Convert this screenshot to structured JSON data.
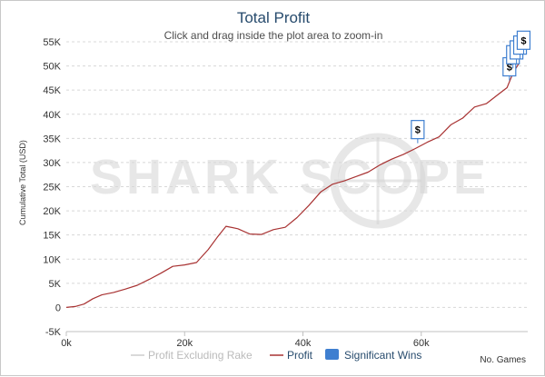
{
  "chart_data": {
    "type": "line",
    "title": "Total Profit",
    "subtitle": "Click and drag inside the plot area to zoom-in",
    "xlabel": "No. Games",
    "ylabel": "Cumulative Total (USD)",
    "xlim": [
      0,
      78000
    ],
    "ylim": [
      -5000,
      55000
    ],
    "x_ticks": [
      0,
      20000,
      40000,
      60000
    ],
    "x_tick_labels": [
      "0k",
      "20k",
      "40k",
      "60k"
    ],
    "y_ticks": [
      -5000,
      0,
      5000,
      10000,
      15000,
      20000,
      25000,
      30000,
      35000,
      40000,
      45000,
      50000,
      55000
    ],
    "y_tick_labels": [
      "-5K",
      "0",
      "5K",
      "10K",
      "15K",
      "20K",
      "25K",
      "30K",
      "35K",
      "40K",
      "45K",
      "50K",
      "55K"
    ],
    "grid": true,
    "series": [
      {
        "name": "Profit",
        "color": "#a83232",
        "x": [
          0,
          1500,
          3000,
          4500,
          6000,
          8000,
          10000,
          12000,
          14000,
          16000,
          18000,
          20000,
          22000,
          24000,
          25500,
          27000,
          29000,
          31000,
          33000,
          35000,
          37000,
          39000,
          41000,
          43000,
          45000,
          47000,
          49000,
          51000,
          53000,
          55000,
          57000,
          59000,
          61000,
          63000,
          65000,
          67000,
          69000,
          71000,
          73000,
          74500,
          75500,
          76500
        ],
        "values": [
          0,
          200,
          700,
          1800,
          2600,
          3100,
          3800,
          4600,
          5800,
          7100,
          8500,
          8800,
          9300,
          12000,
          14500,
          16800,
          16300,
          15200,
          15100,
          16100,
          16600,
          18600,
          21100,
          23900,
          25500,
          26200,
          27100,
          28000,
          29500,
          30700,
          31700,
          32900,
          34200,
          35300,
          37800,
          39200,
          41500,
          42200,
          44100,
          45500,
          48500,
          50500
        ]
      },
      {
        "name": "Profit Excluding Rake",
        "color": "#cccccc",
        "x": [],
        "values": []
      }
    ],
    "significant_wins": [
      {
        "x": 59400,
        "y": 34000,
        "label": "$"
      },
      {
        "x": 74900,
        "y": 47000,
        "label": "$"
      },
      {
        "x": 75500,
        "y": 49500,
        "label": "$"
      },
      {
        "x": 76100,
        "y": 50500,
        "label": "$"
      },
      {
        "x": 76700,
        "y": 51500,
        "label": "$"
      },
      {
        "x": 77300,
        "y": 52500,
        "label": "$"
      }
    ],
    "legend": [
      {
        "name": "Profit Excluding Rake",
        "color": "#cccccc",
        "marker": "line",
        "text_color": "#bbbbbb"
      },
      {
        "name": "Profit",
        "color": "#a83232",
        "marker": "line",
        "text_color": "#274b6d"
      },
      {
        "name": "Significant Wins",
        "color": "#3f7fd0",
        "marker": "box",
        "text_color": "#274b6d"
      }
    ],
    "watermark": "SHARK SCOPE"
  }
}
